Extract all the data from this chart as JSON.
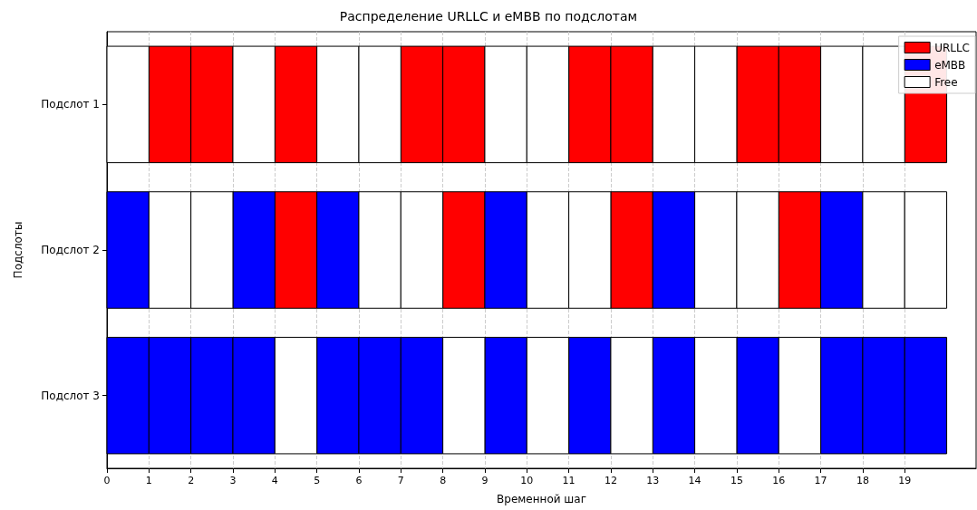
{
  "chart_data": {
    "type": "bar",
    "orientation": "horizontal",
    "title": "Распределение URLLC и eMBB по подслотам",
    "xlabel": "Временной шаг",
    "ylabel": "Подслоты",
    "categories": [
      "Подслот 1",
      "Подслот 2",
      "Подслот 3"
    ],
    "xlim": [
      0,
      20.7
    ],
    "xticks": [
      0,
      1,
      2,
      3,
      4,
      5,
      6,
      7,
      8,
      9,
      10,
      11,
      12,
      13,
      14,
      15,
      16,
      17,
      18,
      19
    ],
    "grid": "x",
    "legend": "top right",
    "series": [
      {
        "name": "URLLC",
        "color": "#ff0000",
        "x": [
          "Подслот 1",
          "Подслот 1",
          "Подслот 1",
          "Подслот 1",
          "Подслот 1",
          "Подслот 1",
          "Подслот 1",
          "Подслот 1",
          "Подслот 1",
          "Подслот 1",
          "Подслот 2",
          "Подслот 2",
          "Подслот 2",
          "Подслот 2"
        ],
        "base": [
          1,
          2,
          4,
          7,
          8,
          11,
          12,
          15,
          16,
          19,
          4,
          8,
          12,
          16
        ],
        "values": [
          1,
          1,
          1,
          1,
          1,
          1,
          1,
          1,
          1,
          1,
          1,
          1,
          1,
          1
        ]
      },
      {
        "name": "eMBB",
        "color": "#0000ff",
        "x": [
          "Подслот 2",
          "Подслот 2",
          "Подслот 2",
          "Подслот 2",
          "Подслот 2",
          "Подслот 2",
          "Подслот 3",
          "Подслот 3",
          "Подслот 3",
          "Подслот 3",
          "Подслот 3",
          "Подслот 3",
          "Подслот 3",
          "Подслот 3",
          "Подслот 3",
          "Подслот 3",
          "Подслот 3",
          "Подслот 3",
          "Подслот 3",
          "Подслот 3"
        ],
        "base": [
          0,
          3,
          5,
          9,
          13,
          17,
          0,
          1,
          2,
          3,
          5,
          6,
          7,
          9,
          11,
          13,
          15,
          17,
          18,
          19
        ],
        "values": [
          1,
          1,
          1,
          1,
          1,
          1,
          1,
          1,
          1,
          1,
          1,
          1,
          1,
          1,
          1,
          1,
          1,
          1,
          1,
          1
        ]
      },
      {
        "name": "Free",
        "color": "#ffffff",
        "x": [
          "Подслот 1",
          "Подслот 1",
          "Подслот 1",
          "Подслот 1",
          "Подслот 1",
          "Подслот 1",
          "Подслот 1",
          "Подслот 1",
          "Подслот 1",
          "Подслот 1",
          "Подслот 2",
          "Подслот 2",
          "Подслот 2",
          "Подслот 2",
          "Подслот 2",
          "Подслот 2",
          "Подслот 2",
          "Подслот 2",
          "Подслот 2",
          "Подслот 2",
          "Подслот 3",
          "Подслот 3",
          "Подслот 3",
          "Подслот 3",
          "Подслот 3",
          "Подслот 3"
        ],
        "base": [
          0,
          3,
          5,
          6,
          9,
          10,
          13,
          14,
          17,
          18,
          1,
          2,
          6,
          7,
          10,
          11,
          14,
          15,
          18,
          19,
          4,
          8,
          10,
          12,
          14,
          16
        ],
        "values": [
          1,
          1,
          1,
          1,
          1,
          1,
          1,
          1,
          1,
          1,
          1,
          1,
          1,
          1,
          1,
          1,
          1,
          1,
          1,
          1,
          1,
          1,
          1,
          1,
          1,
          1
        ]
      }
    ]
  }
}
